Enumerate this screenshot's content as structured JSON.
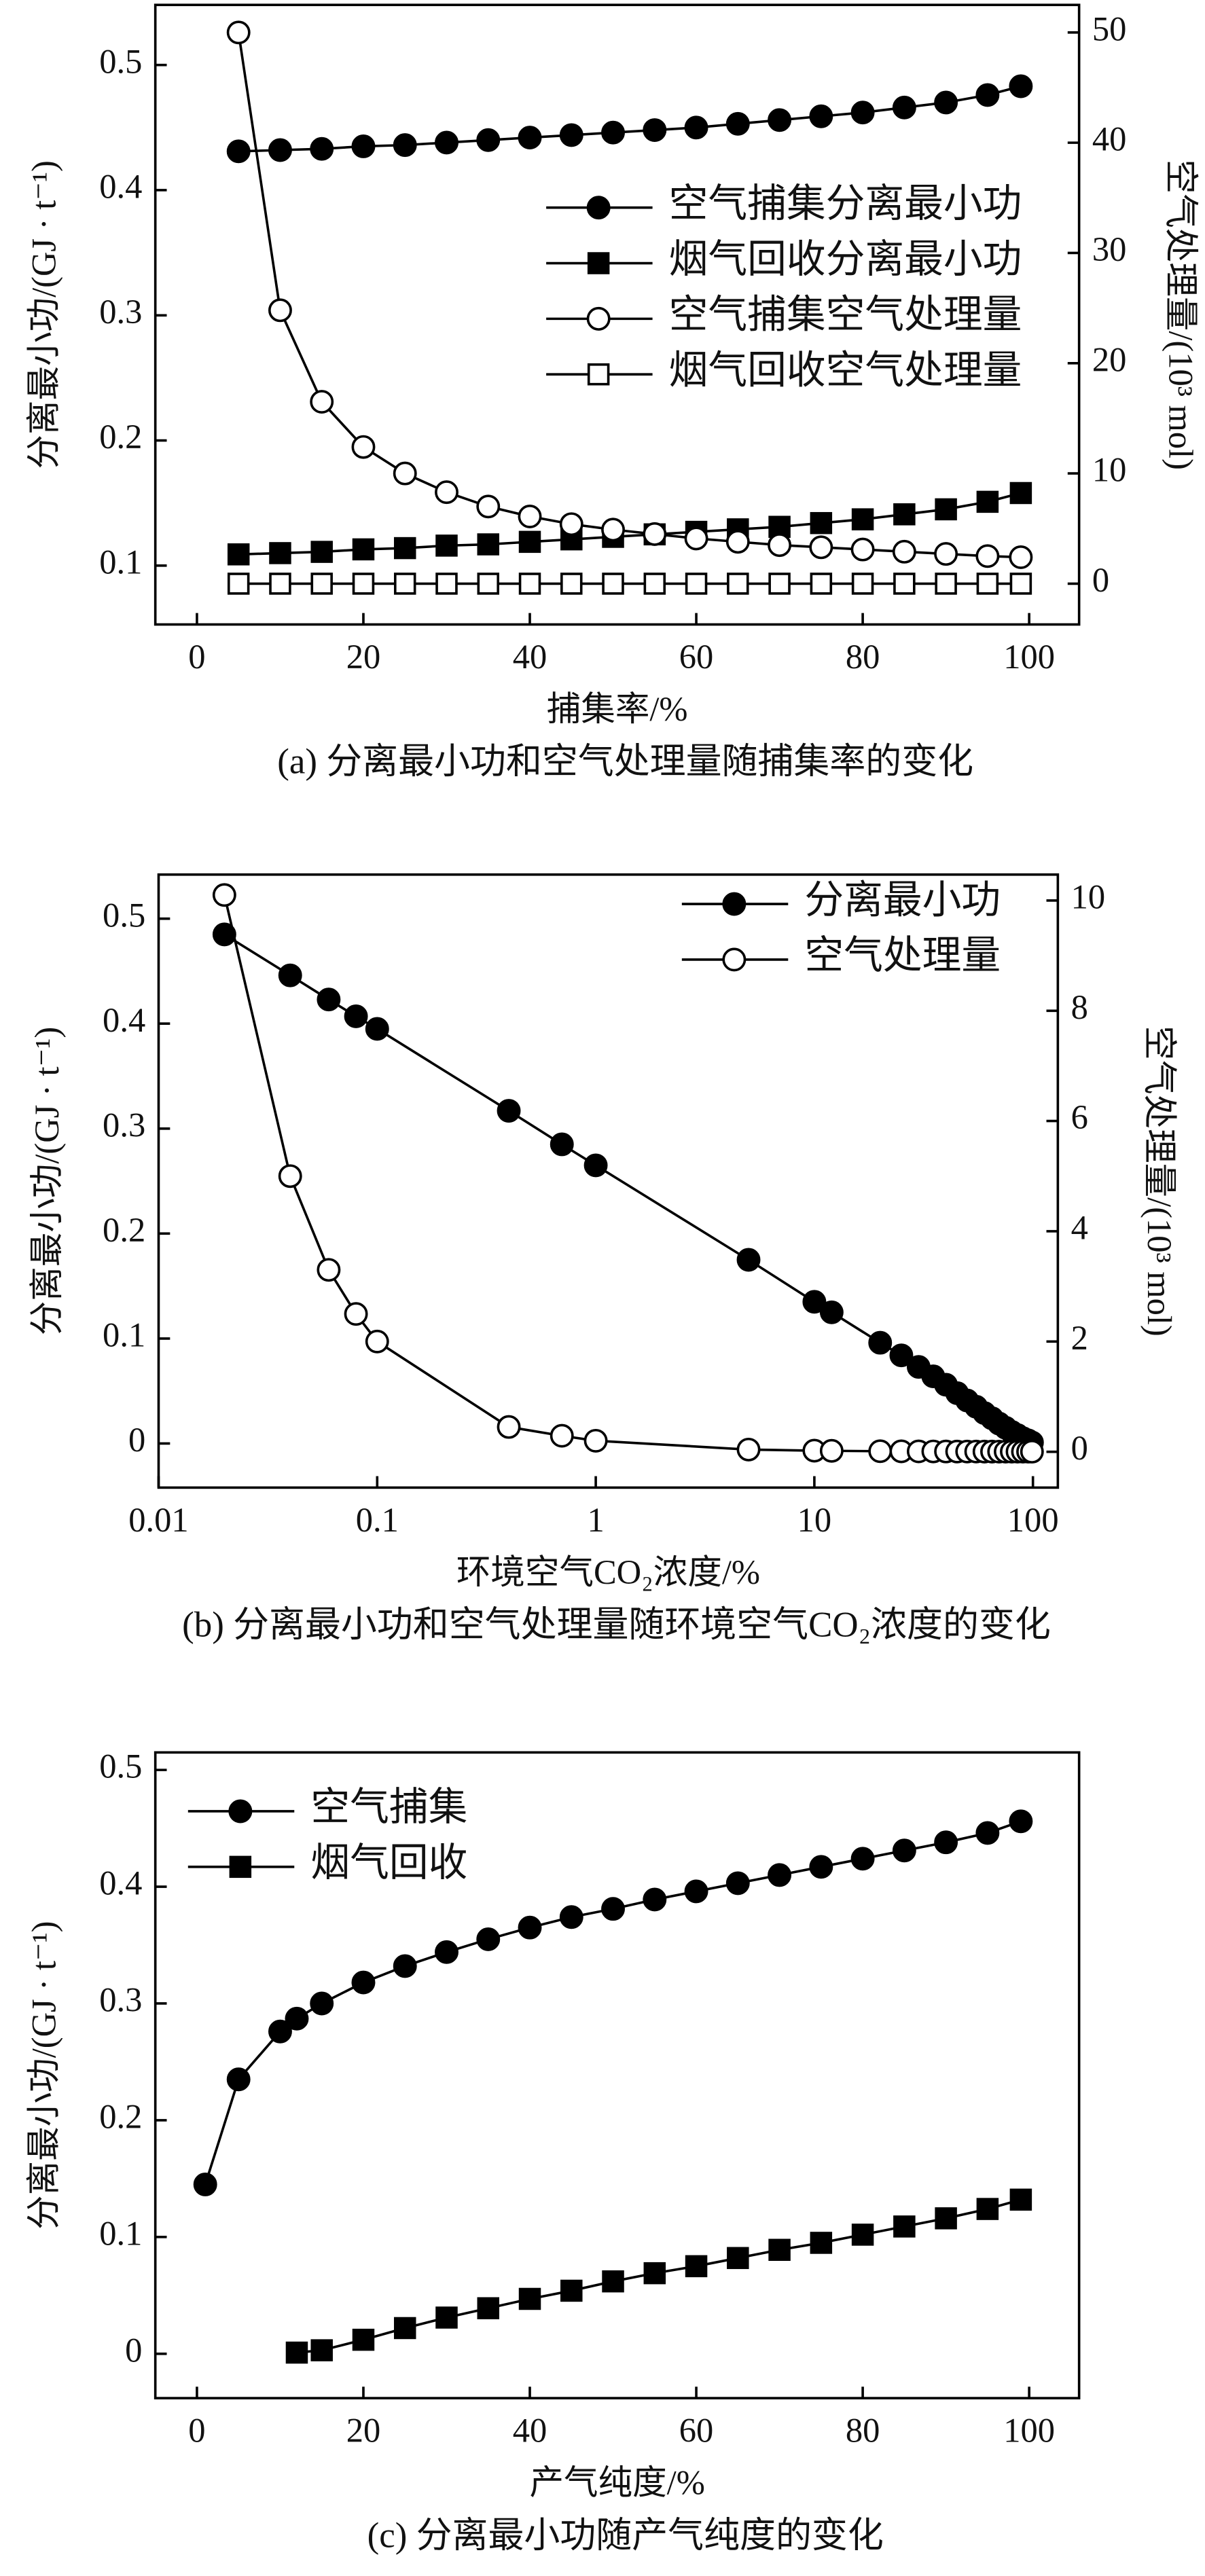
{
  "chart_data": [
    {
      "type": "line",
      "caption": "(a) 分离最小功和空气处理量随捕集率的变化",
      "xlabel": "捕集率/%",
      "ylabel": "分离最小功/(GJ · t⁻¹)",
      "y2label": "空气处理量/(10³ mol)",
      "xlim": [
        -5,
        106
      ],
      "xticks": [
        0,
        20,
        40,
        60,
        80,
        100
      ],
      "ylim": [
        0.053,
        0.548
      ],
      "yticks": [
        0.1,
        0.2,
        0.3,
        0.4,
        0.5
      ],
      "y2lim": [
        -3.7,
        52.5
      ],
      "y2ticks": [
        0,
        10,
        20,
        30,
        40,
        50
      ],
      "log_x": false,
      "legend": "upper right",
      "series": [
        {
          "name": "空气捕集分离最小功",
          "color": "#000000",
          "marker": "circle",
          "fill": "filled",
          "axis": "y",
          "x": [
            5,
            10,
            15,
            20,
            25,
            30,
            35,
            40,
            45,
            50,
            55,
            60,
            65,
            70,
            75,
            80,
            85,
            90,
            95,
            99
          ],
          "values": [
            0.431,
            0.432,
            0.433,
            0.435,
            0.436,
            0.438,
            0.44,
            0.442,
            0.444,
            0.446,
            0.448,
            0.45,
            0.453,
            0.456,
            0.459,
            0.462,
            0.466,
            0.47,
            0.476,
            0.483
          ]
        },
        {
          "name": "烟气回收分离最小功",
          "color": "#000000",
          "marker": "square",
          "fill": "filled",
          "axis": "y",
          "x": [
            5,
            10,
            15,
            20,
            25,
            30,
            35,
            40,
            45,
            50,
            55,
            60,
            65,
            70,
            75,
            80,
            85,
            90,
            95,
            99
          ],
          "values": [
            0.109,
            0.11,
            0.111,
            0.113,
            0.114,
            0.116,
            0.117,
            0.119,
            0.121,
            0.123,
            0.125,
            0.127,
            0.129,
            0.131,
            0.134,
            0.137,
            0.141,
            0.145,
            0.151,
            0.158
          ]
        },
        {
          "name": "空气捕集空气处理量",
          "color": "#000000",
          "marker": "circle",
          "fill": "open",
          "axis": "y2",
          "x": [
            5,
            10,
            15,
            20,
            25,
            30,
            35,
            40,
            45,
            50,
            55,
            60,
            65,
            70,
            75,
            80,
            85,
            90,
            95,
            99
          ],
          "values": [
            50,
            24.8,
            16.5,
            12.4,
            10,
            8.3,
            7,
            6.1,
            5.4,
            4.9,
            4.5,
            4.1,
            3.8,
            3.5,
            3.3,
            3.1,
            2.9,
            2.7,
            2.5,
            2.4
          ]
        },
        {
          "name": "烟气回收空气处理量",
          "color": "#000000",
          "marker": "square",
          "fill": "open",
          "axis": "y2",
          "x": [
            5,
            10,
            15,
            20,
            25,
            30,
            35,
            40,
            45,
            50,
            55,
            60,
            65,
            70,
            75,
            80,
            85,
            90,
            95,
            99
          ],
          "values": [
            0,
            0,
            0,
            0,
            0,
            0,
            0,
            0,
            0,
            0,
            0,
            0,
            0,
            0,
            0,
            0,
            0,
            0,
            0,
            0
          ]
        }
      ]
    },
    {
      "type": "line",
      "caption": "(b) 分离最小功和空气处理量随环境空气CO₂浓度的变化",
      "xlabel": "环境空气CO₂浓度/%",
      "ylabel": "分离最小功/(GJ · t⁻¹)",
      "y2label": "空气处理量/(10³ mol)",
      "xlim": [
        0.01,
        130
      ],
      "xticks": [
        0.01,
        0.1,
        1,
        10,
        100
      ],
      "ylim": [
        -0.042,
        0.542
      ],
      "yticks": [
        0,
        0.1,
        0.2,
        0.3,
        0.4,
        0.5
      ],
      "y2lim": [
        -0.65,
        10.47
      ],
      "y2ticks": [
        0,
        2,
        4,
        6,
        8,
        10
      ],
      "log_x": true,
      "legend": "upper right",
      "series": [
        {
          "name": "分离最小功",
          "color": "#000000",
          "marker": "circle",
          "fill": "filled",
          "axis": "y",
          "x": [
            0.02,
            0.04,
            0.06,
            0.08,
            0.1,
            0.4,
            0.7,
            1,
            5,
            10,
            12,
            20,
            25,
            30,
            35,
            40,
            45,
            50,
            55,
            60,
            65,
            70,
            75,
            80,
            85,
            90,
            95,
            99
          ],
          "values": [
            0.485,
            0.446,
            0.423,
            0.407,
            0.395,
            0.317,
            0.285,
            0.265,
            0.175,
            0.135,
            0.125,
            0.096,
            0.084,
            0.073,
            0.064,
            0.056,
            0.048,
            0.041,
            0.035,
            0.029,
            0.024,
            0.019,
            0.015,
            0.011,
            0.008,
            0.005,
            0.003,
            0.001
          ]
        },
        {
          "name": "空气处理量",
          "color": "#000000",
          "marker": "circle",
          "fill": "open",
          "axis": "y2",
          "x": [
            0.02,
            0.04,
            0.06,
            0.08,
            0.1,
            0.4,
            0.7,
            1,
            5,
            10,
            12,
            20,
            25,
            30,
            35,
            40,
            45,
            50,
            55,
            60,
            65,
            70,
            75,
            80,
            85,
            90,
            95,
            99
          ],
          "values": [
            10.1,
            5,
            3.3,
            2.5,
            2,
            0.45,
            0.29,
            0.2,
            0.04,
            0.02,
            0.017,
            0.01,
            0.008,
            0.007,
            0.006,
            0.005,
            0.0044,
            0.004,
            0.0036,
            0.0033,
            0.0031,
            0.0029,
            0.0027,
            0.0025,
            0.0024,
            0.0022,
            0.0021,
            0.002
          ]
        }
      ]
    },
    {
      "type": "line",
      "caption": "(c) 分离最小功随产气纯度的变化",
      "xlabel": "产气纯度/%",
      "ylabel": "分离最小功/(GJ · t⁻¹)",
      "xlim": [
        -5,
        106
      ],
      "xticks": [
        0,
        20,
        40,
        60,
        80,
        100
      ],
      "ylim": [
        -0.038,
        0.515
      ],
      "yticks": [
        0,
        0.1,
        0.2,
        0.3,
        0.4,
        0.5
      ],
      "log_x": false,
      "legend": "upper left",
      "series": [
        {
          "name": "空气捕集",
          "color": "#000000",
          "marker": "circle",
          "fill": "filled",
          "axis": "y",
          "x": [
            1,
            5,
            10,
            12,
            15,
            20,
            25,
            30,
            35,
            40,
            45,
            50,
            55,
            60,
            65,
            70,
            75,
            80,
            85,
            90,
            95,
            99
          ],
          "values": [
            0.145,
            0.235,
            0.276,
            0.287,
            0.3,
            0.318,
            0.332,
            0.344,
            0.355,
            0.365,
            0.374,
            0.381,
            0.389,
            0.396,
            0.403,
            0.41,
            0.417,
            0.424,
            0.431,
            0.438,
            0.446,
            0.456
          ]
        },
        {
          "name": "烟气回收",
          "color": "#000000",
          "marker": "square",
          "fill": "filled",
          "axis": "y",
          "x": [
            12,
            15,
            20,
            25,
            30,
            35,
            40,
            45,
            50,
            55,
            60,
            65,
            70,
            75,
            80,
            85,
            90,
            95,
            99
          ],
          "values": [
            0.001,
            0.003,
            0.012,
            0.022,
            0.031,
            0.039,
            0.047,
            0.054,
            0.062,
            0.069,
            0.075,
            0.082,
            0.089,
            0.095,
            0.102,
            0.109,
            0.116,
            0.124,
            0.132
          ]
        }
      ]
    }
  ]
}
